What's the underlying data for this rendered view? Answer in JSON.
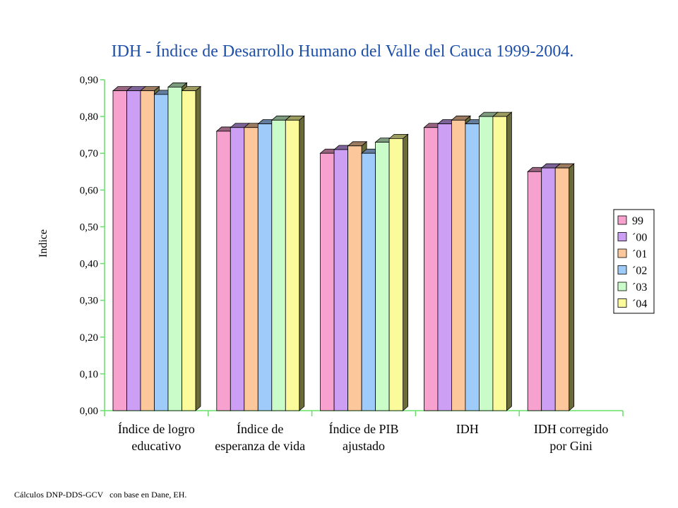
{
  "chart_data": {
    "type": "bar",
    "title": "IDH - Índice de Desarrollo Humano del Valle del Cauca 1999-2004.",
    "xlabel": "",
    "ylabel": "Indice",
    "ylim": [
      0,
      0.9
    ],
    "yticks": [
      "0,00",
      "0,10",
      "0,20",
      "0,30",
      "0,40",
      "0,50",
      "0,60",
      "0,70",
      "0,80",
      "0,90"
    ],
    "grid": false,
    "legend_position": "right",
    "categories": [
      [
        "Índice de logro",
        "educativo"
      ],
      [
        "Índice de",
        "esperanza de vida"
      ],
      [
        "Índice de PIB",
        "ajustado"
      ],
      [
        "IDH"
      ],
      [
        "IDH corregido",
        "por Gini"
      ]
    ],
    "series": [
      {
        "name": "99",
        "color": "#f7a1cf",
        "values": [
          0.87,
          0.76,
          0.7,
          0.77,
          0.65
        ]
      },
      {
        "name": "´00",
        "color": "#cc9ff5",
        "values": [
          0.87,
          0.77,
          0.71,
          0.78,
          0.66
        ]
      },
      {
        "name": "´01",
        "color": "#fcc79b",
        "values": [
          0.87,
          0.77,
          0.72,
          0.79,
          0.66
        ]
      },
      {
        "name": "´02",
        "color": "#9fcbfb",
        "values": [
          0.86,
          0.78,
          0.7,
          0.78,
          null
        ]
      },
      {
        "name": "´03",
        "color": "#c9fcc9",
        "values": [
          0.88,
          0.79,
          0.73,
          0.8,
          null
        ]
      },
      {
        "name": "´04",
        "color": "#fbfb9b",
        "values": [
          0.87,
          0.79,
          0.74,
          0.8,
          null
        ]
      }
    ]
  },
  "footnote": "Cálculos DNP-DDS-GCV   con base en Dane, EH."
}
